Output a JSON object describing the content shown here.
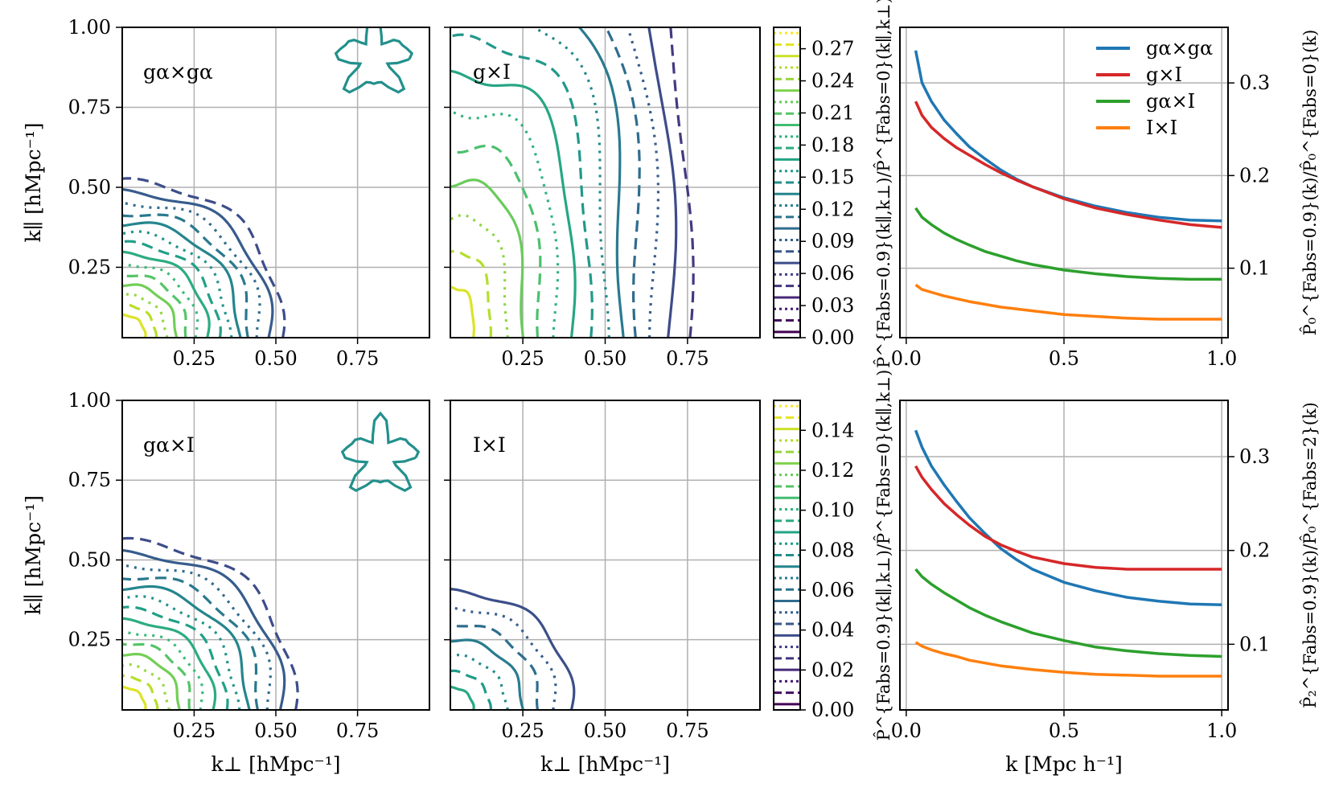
{
  "colors": {
    "blue": "#1f77b4",
    "red": "#d62728",
    "green": "#2ca02c",
    "orange": "#ff7f0e",
    "grid": "#b0b0b0"
  },
  "chart_data": [
    {
      "type": "contour",
      "panel": "top-left",
      "label": "gα×gα",
      "xlim": [
        0.03,
        0.97
      ],
      "ylim": [
        0.03,
        1.0
      ],
      "xticks": [
        "0.25",
        "0.50",
        "0.75"
      ],
      "yticks": [
        "0.25",
        "0.50",
        "0.75",
        "1.00"
      ],
      "ylabel": "k∥ [hMpc⁻¹]",
      "colormap": "viridis"
    },
    {
      "type": "contour",
      "panel": "top-middle",
      "label": "g×I",
      "xlim": [
        0.03,
        0.97
      ],
      "ylim": [
        0.03,
        1.0
      ],
      "xticks": [
        "0.25",
        "0.50",
        "0.75"
      ],
      "colormap": "viridis"
    },
    {
      "type": "colorbar",
      "panel": "top-colorbar",
      "range": [
        0,
        0.29
      ],
      "ticks": [
        "0.00",
        "0.03",
        "0.06",
        "0.09",
        "0.12",
        "0.15",
        "0.18",
        "0.21",
        "0.24",
        "0.27"
      ]
    },
    {
      "type": "line",
      "panel": "top-right",
      "xlim": [
        -0.02,
        1.02
      ],
      "ylim": [
        0.025,
        0.36
      ],
      "xticks": [
        "0.0",
        "0.5",
        "1.0"
      ],
      "yticks": [
        "0.1",
        "0.2",
        "0.3"
      ],
      "ylabel_left": "P̂^{Fabs=0.9}(k∥,k⊥)/P̂^{Fabs=0}(k∥,k⊥)",
      "ylabel_right": "P̂₀^{Fabs=0.9}(k)/P̂₀^{Fabs=0}(k)",
      "legend_position": "top-right",
      "series": [
        {
          "name": "gα×gα",
          "color": "blue",
          "x": [
            0.03,
            0.05,
            0.08,
            0.12,
            0.16,
            0.2,
            0.25,
            0.3,
            0.35,
            0.4,
            0.5,
            0.6,
            0.7,
            0.8,
            0.9,
            1.0
          ],
          "y": [
            0.335,
            0.3,
            0.28,
            0.26,
            0.245,
            0.231,
            0.218,
            0.206,
            0.196,
            0.188,
            0.176,
            0.167,
            0.16,
            0.155,
            0.152,
            0.151
          ]
        },
        {
          "name": "g×I",
          "color": "red",
          "x": [
            0.03,
            0.05,
            0.08,
            0.12,
            0.16,
            0.2,
            0.25,
            0.3,
            0.35,
            0.4,
            0.5,
            0.6,
            0.7,
            0.8,
            0.9,
            1.0
          ],
          "y": [
            0.28,
            0.265,
            0.252,
            0.24,
            0.23,
            0.222,
            0.212,
            0.203,
            0.195,
            0.188,
            0.175,
            0.165,
            0.158,
            0.152,
            0.147,
            0.144
          ]
        },
        {
          "name": "gα×I",
          "color": "green",
          "x": [
            0.03,
            0.05,
            0.08,
            0.12,
            0.16,
            0.2,
            0.25,
            0.3,
            0.35,
            0.4,
            0.5,
            0.6,
            0.7,
            0.8,
            0.9,
            1.0
          ],
          "y": [
            0.165,
            0.155,
            0.147,
            0.138,
            0.131,
            0.125,
            0.118,
            0.113,
            0.108,
            0.104,
            0.098,
            0.094,
            0.091,
            0.089,
            0.088,
            0.088
          ]
        },
        {
          "name": "I×I",
          "color": "orange",
          "x": [
            0.03,
            0.05,
            0.08,
            0.12,
            0.16,
            0.2,
            0.25,
            0.3,
            0.35,
            0.4,
            0.5,
            0.6,
            0.7,
            0.8,
            0.9,
            1.0
          ],
          "y": [
            0.082,
            0.077,
            0.074,
            0.07,
            0.067,
            0.064,
            0.061,
            0.058,
            0.056,
            0.054,
            0.05,
            0.048,
            0.046,
            0.045,
            0.045,
            0.045
          ]
        }
      ]
    },
    {
      "type": "contour",
      "panel": "bottom-left",
      "label": "gα×I",
      "xlim": [
        0.03,
        0.97
      ],
      "ylim": [
        0.03,
        1.0
      ],
      "xticks": [
        "0.25",
        "0.50",
        "0.75"
      ],
      "yticks": [
        "0.25",
        "0.50",
        "0.75",
        "1.00"
      ],
      "xlabel": "k⊥ [hMpc⁻¹]",
      "ylabel": "k∥ [hMpc⁻¹]",
      "colormap": "viridis"
    },
    {
      "type": "contour",
      "panel": "bottom-middle",
      "label": "I×I",
      "xlim": [
        0.03,
        0.97
      ],
      "ylim": [
        0.03,
        1.0
      ],
      "xticks": [
        "0.25",
        "0.50",
        "0.75"
      ],
      "xlabel": "k⊥ [hMpc⁻¹]",
      "colormap": "viridis"
    },
    {
      "type": "colorbar",
      "panel": "bottom-colorbar",
      "range": [
        0,
        0.155
      ],
      "ticks": [
        "0.00",
        "0.02",
        "0.04",
        "0.06",
        "0.08",
        "0.10",
        "0.12",
        "0.14"
      ]
    },
    {
      "type": "line",
      "panel": "bottom-right",
      "xlim": [
        -0.02,
        1.02
      ],
      "ylim": [
        0.03,
        0.36
      ],
      "xticks": [
        "0.0",
        "0.5",
        "1.0"
      ],
      "yticks": [
        "0.1",
        "0.2",
        "0.3"
      ],
      "xlabel": "k [Mpc h⁻¹]",
      "ylabel_left": "P̂^{Fabs=0.9}(k∥,k⊥)/P̂^{Fabs=0}(k∥,k⊥)",
      "ylabel_right": "P̂₂^{Fabs=0.9}(k)/P̂₀^{Fabs=2}(k)",
      "series": [
        {
          "name": "gα×gα",
          "color": "blue",
          "x": [
            0.03,
            0.05,
            0.08,
            0.12,
            0.16,
            0.2,
            0.25,
            0.3,
            0.35,
            0.4,
            0.5,
            0.6,
            0.7,
            0.8,
            0.9,
            1.0
          ],
          "y": [
            0.328,
            0.31,
            0.29,
            0.27,
            0.252,
            0.235,
            0.218,
            0.202,
            0.19,
            0.18,
            0.166,
            0.157,
            0.15,
            0.146,
            0.143,
            0.142
          ]
        },
        {
          "name": "g×I",
          "color": "red",
          "x": [
            0.03,
            0.05,
            0.08,
            0.12,
            0.16,
            0.2,
            0.25,
            0.3,
            0.35,
            0.4,
            0.5,
            0.6,
            0.7,
            0.8,
            0.9,
            1.0
          ],
          "y": [
            0.29,
            0.278,
            0.265,
            0.25,
            0.238,
            0.227,
            0.215,
            0.206,
            0.199,
            0.193,
            0.186,
            0.182,
            0.18,
            0.18,
            0.18,
            0.18
          ]
        },
        {
          "name": "gα×I",
          "color": "green",
          "x": [
            0.03,
            0.05,
            0.08,
            0.12,
            0.16,
            0.2,
            0.25,
            0.3,
            0.35,
            0.4,
            0.5,
            0.6,
            0.7,
            0.8,
            0.9,
            1.0
          ],
          "y": [
            0.18,
            0.172,
            0.164,
            0.155,
            0.147,
            0.139,
            0.131,
            0.124,
            0.118,
            0.112,
            0.104,
            0.097,
            0.093,
            0.09,
            0.088,
            0.087
          ]
        },
        {
          "name": "I×I",
          "color": "orange",
          "x": [
            0.03,
            0.05,
            0.08,
            0.12,
            0.16,
            0.2,
            0.25,
            0.3,
            0.35,
            0.4,
            0.5,
            0.6,
            0.7,
            0.8,
            0.9,
            1.0
          ],
          "y": [
            0.102,
            0.098,
            0.094,
            0.09,
            0.087,
            0.083,
            0.08,
            0.077,
            0.075,
            0.073,
            0.07,
            0.068,
            0.067,
            0.066,
            0.066,
            0.066
          ]
        }
      ]
    }
  ]
}
